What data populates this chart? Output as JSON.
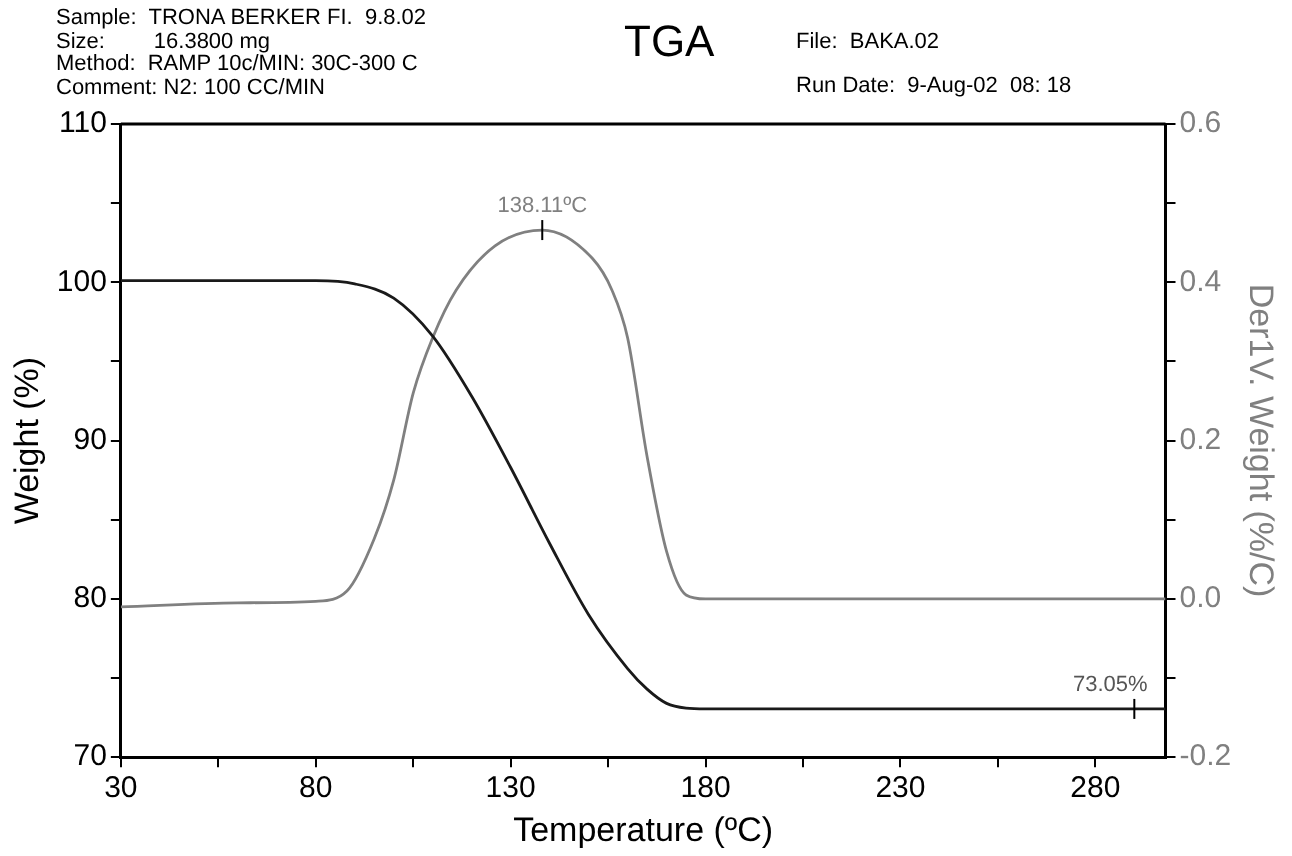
{
  "chart_data": {
    "type": "line",
    "title": "TGA",
    "xlabel": "Temperature (ºC)",
    "ylabel": "Weight (%)",
    "y2label": "Der1V. Weight (%/C)",
    "annotations": [
      "Sample:  TRONA BERKER FI.  9.8.02",
      "Size:        16.3800 mg",
      "Method:  RAMP 10c/MIN: 30C-300 C",
      "Comment: N2: 100 CC/MIN",
      "File:  BAKA.02",
      "Run Date:  9-Aug-02  08: 18",
      "138.11ºC",
      {
        "text": "73.05%",
        "x": 290,
        "y": 73.05
      }
    ],
    "xlim": [
      30,
      298
    ],
    "xticks": [
      30,
      {
        "value": 55,
        "label": null
      },
      80,
      {
        "value": 105,
        "label": null
      },
      130,
      {
        "value": 155,
        "label": null
      },
      180,
      {
        "value": 205,
        "label": null
      },
      230,
      {
        "value": 255,
        "label": null
      },
      280
    ],
    "ylim": [
      70,
      110
    ],
    "yticks": [
      70,
      {
        "value": 75,
        "label": null
      },
      80,
      {
        "value": 85,
        "label": null
      },
      90,
      {
        "value": 95,
        "label": null
      },
      100,
      {
        "value": 105,
        "label": null
      },
      110
    ],
    "y2lim": [
      -0.2,
      0.6
    ],
    "y2ticks": [
      -0.2,
      {
        "value": -0.1,
        "label": null
      },
      "0.0",
      {
        "value": 0.1,
        "label": null
      },
      0.2,
      {
        "value": 0.3,
        "label": null
      },
      0.4,
      {
        "value": 0.5,
        "label": null
      },
      0.6
    ],
    "grid": false,
    "legend": false,
    "marker": "none",
    "series": [
      {
        "color": "#1a1a1a",
        "x": [
          30,
          80,
          90,
          100,
          110,
          120,
          130,
          140,
          150,
          160,
          165,
          170,
          175,
          180,
          298
        ],
        "values": [
          100.1,
          100.1,
          99.9,
          99,
          96.6,
          92.8,
          88.3,
          83.5,
          79,
          75.6,
          74.3,
          73.4,
          73.1,
          73.05,
          73.05
        ]
      },
      {
        "axis": "y2",
        "color": "#808080",
        "x": [
          30,
          60,
          80,
          88,
          95,
          100,
          105,
          110,
          116,
          126,
          138.11,
          151,
          156,
          160,
          165,
          170,
          175,
          180,
          298
        ],
        "values": [
          -0.01,
          -0.005,
          -0.003,
          0.01,
          0.076,
          0.15,
          0.26,
          0.33,
          0.39,
          0.446,
          0.466,
          0.43,
          0.39,
          0.33,
          0.18,
          0.06,
          0.005,
          0,
          0
        ]
      }
    ]
  }
}
